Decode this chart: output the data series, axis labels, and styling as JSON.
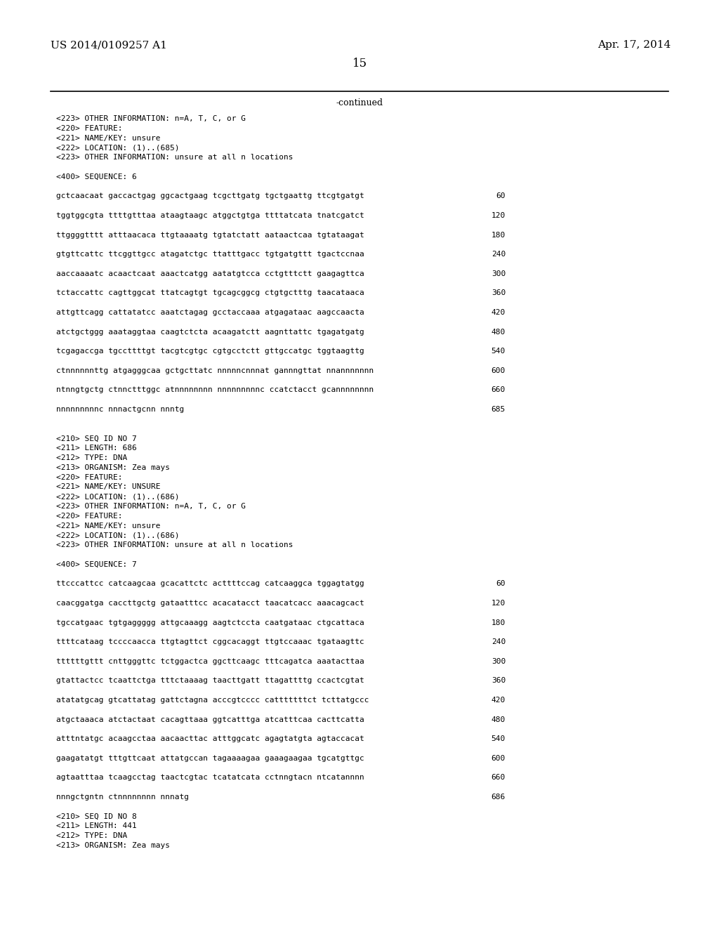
{
  "header_left": "US 2014/0109257 A1",
  "header_right": "Apr. 17, 2014",
  "page_number": "15",
  "continued_label": "-continued",
  "background_color": "#ffffff",
  "text_color": "#000000",
  "content_lines": [
    [
      "<223> OTHER INFORMATION: n=A, T, C, or G",
      null
    ],
    [
      "<220> FEATURE:",
      null
    ],
    [
      "<221> NAME/KEY: unsure",
      null
    ],
    [
      "<222> LOCATION: (1)..(685)",
      null
    ],
    [
      "<223> OTHER INFORMATION: unsure at all n locations",
      null
    ],
    [
      "",
      null
    ],
    [
      "<400> SEQUENCE: 6",
      null
    ],
    [
      "",
      null
    ],
    [
      "gctcaacaat gaccactgag ggcactgaag tcgcttgatg tgctgaattg ttcgtgatgt",
      "60"
    ],
    [
      "",
      null
    ],
    [
      "tggtggcgta ttttgtttaa ataagtaagc atggctgtga ttttatcata tnatcgatct",
      "120"
    ],
    [
      "",
      null
    ],
    [
      "ttggggtttt atttaacaca ttgtaaaatg tgtatctatt aataactcaa tgtataagat",
      "180"
    ],
    [
      "",
      null
    ],
    [
      "gtgttcattc ttcggttgcc atagatctgc ttatttgacc tgtgatgttt tgactccnaa",
      "240"
    ],
    [
      "",
      null
    ],
    [
      "aaccaaaatc acaactcaat aaactcatgg aatatgtcca cctgtttctt gaagagttca",
      "300"
    ],
    [
      "",
      null
    ],
    [
      "tctaccattc cagttggcat ttatcagtgt tgcagcggcg ctgtgctttg taacataaca",
      "360"
    ],
    [
      "",
      null
    ],
    [
      "attgttcagg cattatatcc aaatctagag gcctaccaaa atgagataac aagccaacta",
      "420"
    ],
    [
      "",
      null
    ],
    [
      "atctgctggg aaataggtaa caagtctcta acaagatctt aagnttattc tgagatgatg",
      "480"
    ],
    [
      "",
      null
    ],
    [
      "tcgagaccga tgccttttgt tacgtcgtgc cgtgcctctt gttgccatgc tggtaagttg",
      "540"
    ],
    [
      "",
      null
    ],
    [
      "ctnnnnnnttg atgagggcaa gctgcttatc nnnnncnnnat gannngttat nnannnnnnn",
      "600"
    ],
    [
      "",
      null
    ],
    [
      "ntnngtgctg ctnnctttggc atnnnnnnnn nnnnnnnnnc ccatctacct gcannnnnnnn",
      "660"
    ],
    [
      "",
      null
    ],
    [
      "nnnnnnnnnc nnnactgcnn nnntg",
      "685"
    ],
    [
      "",
      null
    ],
    [
      "",
      null
    ],
    [
      "<210> SEQ ID NO 7",
      null
    ],
    [
      "<211> LENGTH: 686",
      null
    ],
    [
      "<212> TYPE: DNA",
      null
    ],
    [
      "<213> ORGANISM: Zea mays",
      null
    ],
    [
      "<220> FEATURE:",
      null
    ],
    [
      "<221> NAME/KEY: UNSURE",
      null
    ],
    [
      "<222> LOCATION: (1)..(686)",
      null
    ],
    [
      "<223> OTHER INFORMATION: n=A, T, C, or G",
      null
    ],
    [
      "<220> FEATURE:",
      null
    ],
    [
      "<221> NAME/KEY: unsure",
      null
    ],
    [
      "<222> LOCATION: (1)..(686)",
      null
    ],
    [
      "<223> OTHER INFORMATION: unsure at all n locations",
      null
    ],
    [
      "",
      null
    ],
    [
      "<400> SEQUENCE: 7",
      null
    ],
    [
      "",
      null
    ],
    [
      "ttcccattcc catcaagcaa gcacattctc acttttccag catcaaggca tggagtatgg",
      "60"
    ],
    [
      "",
      null
    ],
    [
      "caacggatga caccttgctg gataatttcc acacatacct taacatcacc aaacagcact",
      "120"
    ],
    [
      "",
      null
    ],
    [
      "tgccatgaac tgtgaggggg attgcaaagg aagtctccta caatgataac ctgcattaca",
      "180"
    ],
    [
      "",
      null
    ],
    [
      "ttttcataag tccccaacca ttgtagttct cggcacaggt ttgtccaaac tgataagttc",
      "240"
    ],
    [
      "",
      null
    ],
    [
      "ttttttgttt cnttgggttc tctggactca ggcttcaagc tttcagatca aaatacttaa",
      "300"
    ],
    [
      "",
      null
    ],
    [
      "gtattactcc tcaattctga tttctaaaag taacttgatt ttagattttg ccactcgtat",
      "360"
    ],
    [
      "",
      null
    ],
    [
      "atatatgcag gtcattatag gattctagna acccgtcccc catttttttct tcttatgccc",
      "420"
    ],
    [
      "",
      null
    ],
    [
      "atgctaaaca atctactaat cacagttaaa ggtcatttga atcatttcaa cacttcatta",
      "480"
    ],
    [
      "",
      null
    ],
    [
      "atttntatgc acaagcctaa aacaacttac atttggcatc agagtatgta agtaccacat",
      "540"
    ],
    [
      "",
      null
    ],
    [
      "gaagatatgt tttgttcaat attatgccan tagaaaagaa gaaagaagaa tgcatgttgc",
      "600"
    ],
    [
      "",
      null
    ],
    [
      "agtaatttaa tcaagcctag taactcgtac tcatatcata cctnngtacn ntcatannnn",
      "660"
    ],
    [
      "",
      null
    ],
    [
      "nnngctgntn ctnnnnnnnn nnnatg",
      "686"
    ],
    [
      "",
      null
    ],
    [
      "<210> SEQ ID NO 8",
      null
    ],
    [
      "<211> LENGTH: 441",
      null
    ],
    [
      "<212> TYPE: DNA",
      null
    ],
    [
      "<213> ORGANISM: Zea mays",
      null
    ]
  ]
}
